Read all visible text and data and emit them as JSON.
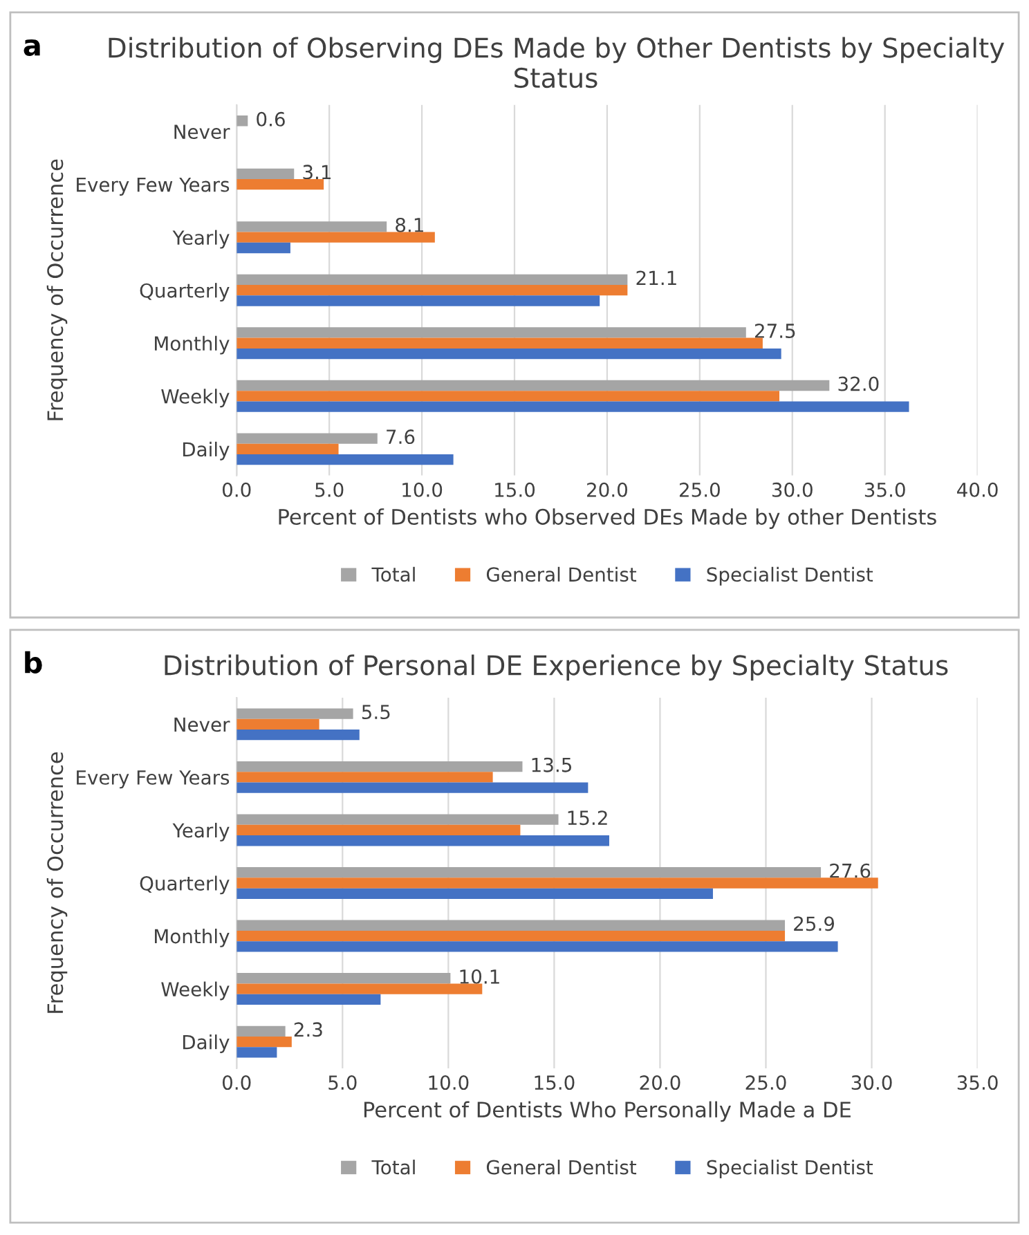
{
  "chart_data": [
    {
      "type": "bar",
      "orientation": "horizontal",
      "title": "Distribution of Observing DEs Made by Other Dentists by Specialty Status",
      "xlabel": "Percent of Dentists who Observed DEs Made by other Dentists",
      "ylabel": "Frequency of Occurrence",
      "annotations": [
        "a"
      ],
      "categories": [
        "Never",
        "Every Few Years",
        "Yearly",
        "Quarterly",
        "Monthly",
        "Weekly",
        "Daily"
      ],
      "series": [
        {
          "name": "Total",
          "color": "#a5a5a5",
          "values": [
            0.6,
            3.1,
            8.1,
            21.1,
            27.5,
            32.0,
            7.6
          ],
          "value_labels": [
            "0.6",
            "3.1",
            "8.1",
            "21.1",
            "27.5",
            "32.0",
            "7.6"
          ]
        },
        {
          "name": "General Dentist",
          "color": "#ed7d31",
          "values": [
            0,
            4.7,
            10.7,
            21.1,
            28.4,
            29.3,
            5.5
          ]
        },
        {
          "name": "Specialist Dentist",
          "color": "#4472c4",
          "values": [
            0,
            0,
            2.9,
            19.6,
            29.4,
            36.3,
            11.7
          ]
        }
      ],
      "xlim": [
        0,
        40
      ],
      "xticks": [
        {
          "value": 0,
          "label": "0.0"
        },
        {
          "value": 5,
          "label": "5.0"
        },
        {
          "value": 10,
          "label": "10.0"
        },
        {
          "value": 15,
          "label": "15.0"
        },
        {
          "value": 20,
          "label": "20.0"
        },
        {
          "value": 25,
          "label": "25.0"
        },
        {
          "value": 30,
          "label": "30.0"
        },
        {
          "value": 35,
          "label": "35.0"
        },
        {
          "value": 40,
          "label": "40.0"
        }
      ],
      "grid": "x",
      "legend": "bottom"
    },
    {
      "type": "bar",
      "orientation": "horizontal",
      "title": "Distribution of Personal DE Experience by Specialty Status",
      "xlabel": "Percent of Dentists Who Personally Made a DE",
      "ylabel": "Frequency of Occurrence",
      "annotations": [
        "b"
      ],
      "categories": [
        "Never",
        "Every Few Years",
        "Yearly",
        "Quarterly",
        "Monthly",
        "Weekly",
        "Daily"
      ],
      "series": [
        {
          "name": "Total",
          "color": "#a5a5a5",
          "values": [
            5.5,
            13.5,
            15.2,
            27.6,
            25.9,
            10.1,
            2.3
          ],
          "value_labels": [
            "5.5",
            "13.5",
            "15.2",
            "27.6",
            "25.9",
            "10.1",
            "2.3"
          ]
        },
        {
          "name": "General Dentist",
          "color": "#ed7d31",
          "values": [
            3.9,
            12.1,
            13.4,
            30.3,
            25.9,
            11.6,
            2.6
          ]
        },
        {
          "name": "Specialist Dentist",
          "color": "#4472c4",
          "values": [
            5.8,
            16.6,
            17.6,
            22.5,
            28.4,
            6.8,
            1.9
          ]
        }
      ],
      "xlim": [
        0,
        35
      ],
      "xticks": [
        {
          "value": 0,
          "label": "0.0"
        },
        {
          "value": 5,
          "label": "5.0"
        },
        {
          "value": 10,
          "label": "10.0"
        },
        {
          "value": 15,
          "label": "15.0"
        },
        {
          "value": 20,
          "label": "20.0"
        },
        {
          "value": 25,
          "label": "25.0"
        },
        {
          "value": 30,
          "label": "30.0"
        },
        {
          "value": 35,
          "label": "35.0"
        }
      ],
      "grid": "x",
      "legend": "bottom"
    }
  ]
}
